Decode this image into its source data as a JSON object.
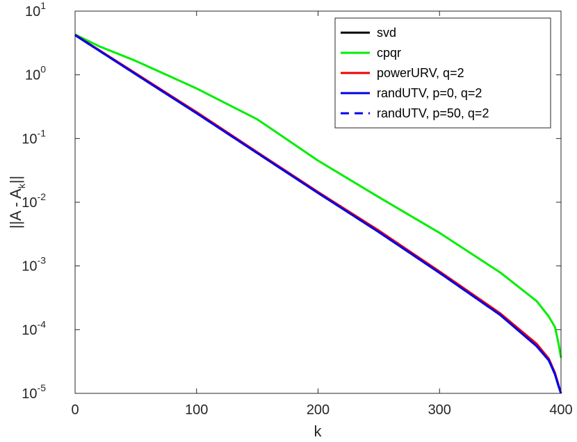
{
  "chart_data": {
    "type": "line",
    "xlabel": "k",
    "ylabel": "||A - A",
    "ylabel_subscript": "k",
    "ylabel_suffix": "||",
    "xlim": [
      0,
      400
    ],
    "ylim_log10": [
      -5,
      1
    ],
    "yscale": "log",
    "grid": false,
    "legend_position": "top-right",
    "x_ticks": [
      "0",
      "100",
      "200",
      "300",
      "400"
    ],
    "y_ticks": [
      {
        "base": "10",
        "exp": "1"
      },
      {
        "base": "10",
        "exp": "0"
      },
      {
        "base": "10",
        "exp": "-1"
      },
      {
        "base": "10",
        "exp": "-2"
      },
      {
        "base": "10",
        "exp": "-3"
      },
      {
        "base": "10",
        "exp": "-4"
      },
      {
        "base": "10",
        "exp": "-5"
      }
    ],
    "series": [
      {
        "name": "svd",
        "color": "#000000",
        "dash": false,
        "x": [
          0,
          50,
          100,
          150,
          200,
          250,
          300,
          350,
          380,
          390,
          395,
          398,
          400
        ],
        "y": [
          4.2,
          1.02,
          0.25,
          0.059,
          0.014,
          0.0034,
          0.00078,
          0.00017,
          5.5e-05,
          3.3e-05,
          2e-05,
          1.3e-05,
          1e-05
        ]
      },
      {
        "name": "cpqr",
        "color": "#00ee00",
        "dash": false,
        "x": [
          0,
          20,
          50,
          100,
          150,
          200,
          250,
          300,
          350,
          380,
          390,
          395,
          398,
          400
        ],
        "y": [
          4.3,
          2.8,
          1.65,
          0.61,
          0.2,
          0.045,
          0.012,
          0.0033,
          0.00079,
          0.00028,
          0.00016,
          0.00011,
          6e-05,
          3.6e-05
        ]
      },
      {
        "name": "powerURV, q=2",
        "color": "#ee0000",
        "dash": false,
        "x": [
          0,
          50,
          100,
          150,
          200,
          250,
          300,
          350,
          380,
          390,
          395,
          398,
          400
        ],
        "y": [
          4.25,
          1.05,
          0.26,
          0.061,
          0.0145,
          0.0036,
          0.00082,
          0.00018,
          6e-05,
          3.5e-05,
          2.1e-05,
          1.35e-05,
          1e-05
        ]
      },
      {
        "name": "randUTV, p=0, q=2",
        "color": "#0000ee",
        "dash": false,
        "x": [
          0,
          50,
          100,
          150,
          200,
          250,
          300,
          350,
          380,
          390,
          395,
          398,
          400
        ],
        "y": [
          4.2,
          1.02,
          0.25,
          0.059,
          0.014,
          0.0034,
          0.00078,
          0.00017,
          5.5e-05,
          3.3e-05,
          2e-05,
          1.3e-05,
          1e-05
        ]
      },
      {
        "name": "randUTV, p=50, q=2",
        "color": "#0000ee",
        "dash": true,
        "x": [
          0,
          50,
          100,
          150,
          200,
          250,
          300,
          350,
          380,
          390,
          395,
          398,
          400
        ],
        "y": [
          4.2,
          1.02,
          0.25,
          0.059,
          0.014,
          0.0034,
          0.00078,
          0.00017,
          5.5e-05,
          3.3e-05,
          2e-05,
          1.3e-05,
          1e-05
        ]
      }
    ]
  }
}
